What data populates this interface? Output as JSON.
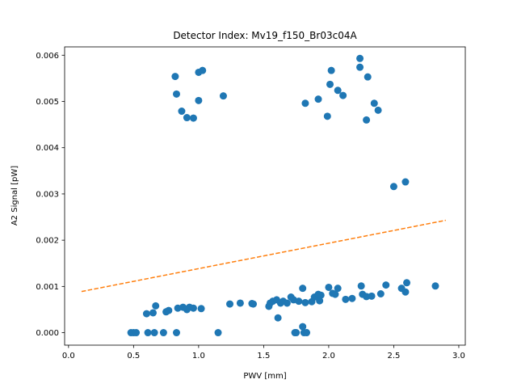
{
  "chart_data": {
    "type": "scatter",
    "title": "Detector Index: Mv19_f150_Br03c04A",
    "xlabel": "PWV [mm]",
    "ylabel": "A2 Signal [pW]",
    "xlim": [
      -0.03,
      3.05
    ],
    "ylim": [
      -0.00027,
      0.00618
    ],
    "xticks": [
      0.0,
      0.5,
      1.0,
      1.5,
      2.0,
      2.5,
      3.0
    ],
    "xtick_labels": [
      "0.0",
      "0.5",
      "1.0",
      "1.5",
      "2.0",
      "2.5",
      "3.0"
    ],
    "yticks": [
      0.0,
      0.001,
      0.002,
      0.003,
      0.004,
      0.005,
      0.006
    ],
    "ytick_labels": [
      "0.000",
      "0.001",
      "0.002",
      "0.003",
      "0.004",
      "0.005",
      "0.006"
    ],
    "grid": false,
    "colors": {
      "points": "#1f77b4",
      "fit": "#ff7f0e"
    },
    "series": [
      {
        "name": "data",
        "kind": "scatter",
        "points": [
          [
            0.82,
            0.00554
          ],
          [
            0.83,
            0.00516
          ],
          [
            0.87,
            0.00479
          ],
          [
            0.91,
            0.00465
          ],
          [
            0.96,
            0.00464
          ],
          [
            1.0,
            0.00563
          ],
          [
            1.03,
            0.00567
          ],
          [
            1.0,
            0.00502
          ],
          [
            1.19,
            0.00512
          ],
          [
            1.82,
            0.00496
          ],
          [
            1.92,
            0.00505
          ],
          [
            1.99,
            0.00468
          ],
          [
            2.01,
            0.00537
          ],
          [
            2.02,
            0.00567
          ],
          [
            2.07,
            0.00524
          ],
          [
            2.11,
            0.00513
          ],
          [
            2.24,
            0.00593
          ],
          [
            2.24,
            0.00574
          ],
          [
            2.3,
            0.00553
          ],
          [
            2.29,
            0.0046
          ],
          [
            2.35,
            0.00496
          ],
          [
            2.38,
            0.00481
          ],
          [
            2.5,
            0.00316
          ],
          [
            2.59,
            0.00326
          ],
          [
            0.48,
            0.0
          ],
          [
            0.5,
            0.0
          ],
          [
            0.52,
            0.0
          ],
          [
            0.6,
            0.00041
          ],
          [
            0.61,
            0.0
          ],
          [
            0.65,
            0.00043
          ],
          [
            0.66,
            0.0
          ],
          [
            0.67,
            0.00058
          ],
          [
            0.73,
            0.0
          ],
          [
            0.75,
            0.00045
          ],
          [
            0.77,
            0.00048
          ],
          [
            0.83,
            0.0
          ],
          [
            0.84,
            0.00053
          ],
          [
            0.88,
            0.00055
          ],
          [
            0.91,
            0.0005
          ],
          [
            0.93,
            0.00055
          ],
          [
            0.96,
            0.00053
          ],
          [
            1.02,
            0.00052
          ],
          [
            1.15,
            0.0
          ],
          [
            1.24,
            0.00062
          ],
          [
            1.32,
            0.00064
          ],
          [
            1.41,
            0.00063
          ],
          [
            1.42,
            0.00062
          ],
          [
            1.54,
            0.00057
          ],
          [
            1.55,
            0.00064
          ],
          [
            1.57,
            0.00068
          ],
          [
            1.6,
            0.00071
          ],
          [
            1.61,
            0.00032
          ],
          [
            1.63,
            0.00064
          ],
          [
            1.65,
            0.00068
          ],
          [
            1.68,
            0.00064
          ],
          [
            1.71,
            0.00077
          ],
          [
            1.73,
            0.00071
          ],
          [
            1.74,
            0.0
          ],
          [
            1.75,
            0.0
          ],
          [
            1.77,
            0.00068
          ],
          [
            1.8,
            0.00096
          ],
          [
            1.8,
            0.00013
          ],
          [
            1.81,
            0.0
          ],
          [
            1.82,
            0.00065
          ],
          [
            1.83,
            0.0
          ],
          [
            1.87,
            0.00067
          ],
          [
            1.89,
            0.00077
          ],
          [
            1.92,
            0.00083
          ],
          [
            1.93,
            0.00069
          ],
          [
            1.94,
            0.00081
          ],
          [
            2.0,
            0.00098
          ],
          [
            2.03,
            0.00085
          ],
          [
            2.05,
            0.00083
          ],
          [
            2.07,
            0.00096
          ],
          [
            2.13,
            0.00072
          ],
          [
            2.18,
            0.00074
          ],
          [
            2.25,
            0.00101
          ],
          [
            2.26,
            0.00083
          ],
          [
            2.29,
            0.00078
          ],
          [
            2.33,
            0.00079
          ],
          [
            2.4,
            0.00084
          ],
          [
            2.44,
            0.00103
          ],
          [
            2.56,
            0.00096
          ],
          [
            2.59,
            0.00088
          ],
          [
            2.6,
            0.00108
          ],
          [
            2.82,
            0.00101
          ]
        ]
      },
      {
        "name": "fit",
        "kind": "line",
        "style": "dashed",
        "points": [
          [
            0.1,
            0.00089
          ],
          [
            2.9,
            0.00243
          ]
        ]
      }
    ]
  }
}
